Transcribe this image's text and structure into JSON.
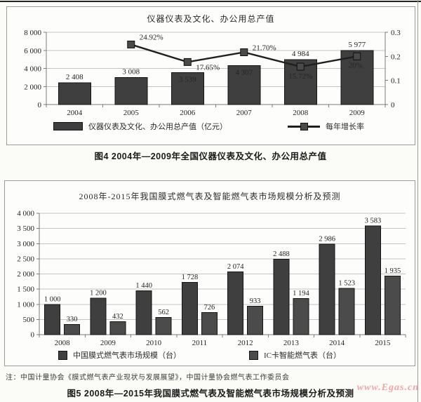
{
  "page": {
    "caption_fig4": "图4 2004年—2009年全国仪器仪表及文化、办公用总产值",
    "caption_fig5": "图5 2008年—2015年我国膜式燃气表及智能燃气表市场规模分析及预测",
    "note": "注：中国计量协会《膜式燃气表产业现状与发展展望》，中国计量协会燃气表工作委员会",
    "watermark": "www.Egas.cn",
    "watermark_color": "#f2a6a6"
  },
  "chart_data": [
    {
      "id": "fig4",
      "type": "bar+line",
      "title": "仪器仪表及文化、办公用总产值",
      "categories": [
        "2004",
        "2005",
        "2006",
        "2007",
        "2008",
        "2009"
      ],
      "series": [
        {
          "name": "仪器仪表及文化、办公用总产值（亿元）",
          "type": "bar",
          "values": [
            2408,
            3008,
            3539,
            4307,
            4984,
            5977
          ],
          "labels": [
            "2 408",
            "3 008",
            "3 539",
            "4 307",
            "4 984",
            "5 977"
          ],
          "label_inside": [
            false,
            false,
            true,
            true,
            false,
            false
          ],
          "color": "#3f3f3f"
        },
        {
          "name": "每年增长率",
          "type": "line",
          "values": [
            null,
            0.2492,
            0.1765,
            0.217,
            0.1572,
            0.2
          ],
          "labels": [
            "",
            "24.92%",
            "17.65%",
            "21.70%",
            "15.72%",
            "20%"
          ],
          "color": "#1f1f1f"
        }
      ],
      "axes": {
        "left": {
          "min": 0,
          "max": 8000,
          "step": 2000,
          "labels": [
            "0",
            "2 000",
            "4 000",
            "6 000",
            "8 000"
          ]
        },
        "right": {
          "min": 0,
          "max": 0.3,
          "step": 0.1,
          "labels": [
            "0",
            "0.1",
            "0.2",
            "0.3"
          ]
        }
      },
      "grid": true,
      "legend_position": "bottom"
    },
    {
      "id": "fig5",
      "type": "bar",
      "title": "2008年-2015年我国膜式燃气表及智能燃气表市场规模分析及预测",
      "categories": [
        "2008",
        "2009",
        "2010",
        "2011",
        "2012",
        "2013",
        "2014",
        "2015"
      ],
      "series": [
        {
          "name": "中国膜式燃气表市场规模（台）",
          "values": [
            1000,
            1200,
            1440,
            1728,
            2074,
            2488,
            2986,
            3583
          ],
          "labels": [
            "1 000",
            "1 200",
            "1 440",
            "1 728",
            "2 074",
            "2 488",
            "2 986",
            "3 583"
          ],
          "color": "#3f3f3f"
        },
        {
          "name": "IC卡智能燃气表（台）",
          "values": [
            330,
            432,
            562,
            726,
            933,
            1194,
            1523,
            1935
          ],
          "labels": [
            "330",
            "432",
            "562",
            "726",
            "933",
            "1 194",
            "1 523",
            "1 935"
          ],
          "color": "#4b4b4b"
        }
      ],
      "axes": {
        "left": {
          "min": 0,
          "max": 4000,
          "step": 500,
          "labels": [
            "0",
            "500",
            "1 000",
            "1 500",
            "2 000",
            "2 500",
            "3 000",
            "3 500",
            "4 000"
          ]
        }
      },
      "grid": true,
      "legend_position": "bottom"
    }
  ]
}
